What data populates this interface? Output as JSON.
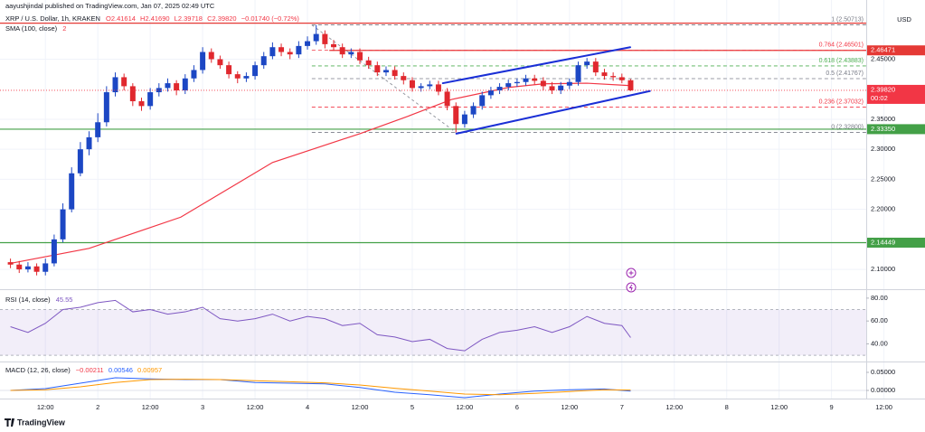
{
  "header": {
    "publisher": "aayushjindal published on TradingView.com, Jan 07, 2025 02:49 UTC",
    "symbol": "XRP / U.S. Dollar, 1h, KRAKEN",
    "ohlc_text": [
      "O2.41614",
      "H2.41690",
      "L2.39718",
      "C2.39820",
      "−0.01740 (−0.72%)"
    ],
    "sma_label": "SMA (100, close)",
    "sma_value": "2"
  },
  "footer": {
    "brand": "TradingView"
  },
  "chart_data": {
    "type": "candlestick",
    "currency": "USD",
    "up_color": "#1c47c4",
    "down_color": "#e0282e",
    "xlim": [
      1.6,
      213.4
    ],
    "xticks": [
      {
        "value": 12,
        "label": "12:00"
      },
      {
        "value": 24,
        "label": "2"
      },
      {
        "value": 36,
        "label": "12:00"
      },
      {
        "value": 48,
        "label": "3"
      },
      {
        "value": 60,
        "label": "12:00"
      },
      {
        "value": 72,
        "label": "4"
      },
      {
        "value": 84,
        "label": "12:00"
      },
      {
        "value": 96,
        "label": "5"
      },
      {
        "value": 108,
        "label": "12:00"
      },
      {
        "value": 120,
        "label": "6"
      },
      {
        "value": 132,
        "label": "12:00"
      },
      {
        "value": 144,
        "label": "7"
      },
      {
        "value": 156,
        "label": "12:00"
      },
      {
        "value": 168,
        "label": "8"
      },
      {
        "value": 180,
        "label": "12:00"
      },
      {
        "value": 192,
        "label": "9"
      },
      {
        "value": 204,
        "label": "12:00"
      }
    ],
    "ylim": [
      2.067,
      2.526
    ],
    "yticks": [
      {
        "value": 2.1,
        "label": "2.10000"
      },
      {
        "value": 2.2,
        "label": "2.20000"
      },
      {
        "value": 2.25,
        "label": "2.25000"
      },
      {
        "value": 2.3,
        "label": "2.30000"
      },
      {
        "value": 2.35,
        "label": "2.35000"
      },
      {
        "value": 2.45,
        "label": "2.45000"
      }
    ],
    "grid": true,
    "x": [
      4,
      6,
      8,
      10,
      12,
      14,
      16,
      18,
      20,
      22,
      24,
      26,
      28,
      30,
      32,
      34,
      36,
      38,
      40,
      42,
      44,
      46,
      48,
      50,
      52,
      54,
      56,
      58,
      60,
      62,
      64,
      66,
      68,
      70,
      72,
      74,
      76,
      78,
      80,
      82,
      84,
      86,
      88,
      90,
      92,
      94,
      96,
      98,
      100,
      102,
      104,
      106,
      108,
      110,
      112,
      114,
      116,
      118,
      120,
      122,
      124,
      126,
      128,
      130,
      132,
      134,
      136,
      138,
      140,
      142,
      144,
      146
    ],
    "ohlc": [
      [
        2.112,
        2.118,
        2.102,
        2.108
      ],
      [
        2.108,
        2.114,
        2.094,
        2.1
      ],
      [
        2.1,
        2.112,
        2.095,
        2.105
      ],
      [
        2.105,
        2.11,
        2.09,
        2.096
      ],
      [
        2.096,
        2.118,
        2.09,
        2.11
      ],
      [
        2.11,
        2.158,
        2.105,
        2.15
      ],
      [
        2.15,
        2.21,
        2.145,
        2.2
      ],
      [
        2.2,
        2.27,
        2.195,
        2.26
      ],
      [
        2.26,
        2.312,
        2.255,
        2.3
      ],
      [
        2.3,
        2.33,
        2.29,
        2.32
      ],
      [
        2.32,
        2.36,
        2.312,
        2.345
      ],
      [
        2.345,
        2.405,
        2.338,
        2.395
      ],
      [
        2.395,
        2.428,
        2.388,
        2.42
      ],
      [
        2.42,
        2.426,
        2.398,
        2.405
      ],
      [
        2.405,
        2.41,
        2.372,
        2.38
      ],
      [
        2.38,
        2.386,
        2.364,
        2.372
      ],
      [
        2.372,
        2.402,
        2.366,
        2.395
      ],
      [
        2.395,
        2.41,
        2.388,
        2.402
      ],
      [
        2.402,
        2.418,
        2.396,
        2.41
      ],
      [
        2.41,
        2.415,
        2.39,
        2.398
      ],
      [
        2.398,
        2.425,
        2.392,
        2.418
      ],
      [
        2.418,
        2.44,
        2.412,
        2.432
      ],
      [
        2.432,
        2.47,
        2.426,
        2.462
      ],
      [
        2.462,
        2.468,
        2.444,
        2.45
      ],
      [
        2.45,
        2.456,
        2.434,
        2.44
      ],
      [
        2.44,
        2.446,
        2.418,
        2.425
      ],
      [
        2.425,
        2.43,
        2.41,
        2.418
      ],
      [
        2.418,
        2.428,
        2.412,
        2.422
      ],
      [
        2.422,
        2.446,
        2.416,
        2.44
      ],
      [
        2.44,
        2.462,
        2.434,
        2.455
      ],
      [
        2.455,
        2.478,
        2.45,
        2.47
      ],
      [
        2.47,
        2.476,
        2.455,
        2.462
      ],
      [
        2.462,
        2.468,
        2.45,
        2.458
      ],
      [
        2.458,
        2.48,
        2.452,
        2.472
      ],
      [
        2.472,
        2.488,
        2.466,
        2.48
      ],
      [
        2.48,
        2.507,
        2.474,
        2.492
      ],
      [
        2.492,
        2.498,
        2.468,
        2.475
      ],
      [
        2.475,
        2.482,
        2.464,
        2.47
      ],
      [
        2.47,
        2.476,
        2.452,
        2.458
      ],
      [
        2.458,
        2.468,
        2.452,
        2.462
      ],
      [
        2.462,
        2.468,
        2.442,
        2.448
      ],
      [
        2.448,
        2.454,
        2.434,
        2.44
      ],
      [
        2.44,
        2.446,
        2.422,
        2.428
      ],
      [
        2.428,
        2.438,
        2.422,
        2.432
      ],
      [
        2.432,
        2.438,
        2.416,
        2.422
      ],
      [
        2.422,
        2.428,
        2.408,
        2.415
      ],
      [
        2.415,
        2.42,
        2.396,
        2.402
      ],
      [
        2.402,
        2.41,
        2.396,
        2.405
      ],
      [
        2.405,
        2.414,
        2.4,
        2.408
      ],
      [
        2.408,
        2.414,
        2.39,
        2.396
      ],
      [
        2.396,
        2.402,
        2.365,
        2.372
      ],
      [
        2.372,
        2.378,
        2.328,
        2.342
      ],
      [
        2.342,
        2.364,
        2.336,
        2.358
      ],
      [
        2.358,
        2.378,
        2.352,
        2.372
      ],
      [
        2.372,
        2.396,
        2.366,
        2.39
      ],
      [
        2.39,
        2.404,
        2.384,
        2.398
      ],
      [
        2.398,
        2.41,
        2.392,
        2.404
      ],
      [
        2.404,
        2.416,
        2.398,
        2.41
      ],
      [
        2.41,
        2.418,
        2.404,
        2.412
      ],
      [
        2.412,
        2.424,
        2.406,
        2.418
      ],
      [
        2.418,
        2.424,
        2.408,
        2.414
      ],
      [
        2.414,
        2.42,
        2.398,
        2.405
      ],
      [
        2.405,
        2.412,
        2.392,
        2.398
      ],
      [
        2.398,
        2.412,
        2.392,
        2.406
      ],
      [
        2.406,
        2.418,
        2.4,
        2.412
      ],
      [
        2.412,
        2.446,
        2.406,
        2.44
      ],
      [
        2.44,
        2.452,
        2.434,
        2.446
      ],
      [
        2.446,
        2.452,
        2.422,
        2.428
      ],
      [
        2.428,
        2.434,
        2.416,
        2.422
      ],
      [
        2.422,
        2.428,
        2.414,
        2.42
      ],
      [
        2.42,
        2.426,
        2.41,
        2.415
      ],
      [
        2.415,
        2.417,
        2.397,
        2.398
      ]
    ],
    "sma": {
      "color": "#f23645",
      "x": [
        4,
        22,
        43,
        64,
        84,
        95,
        105,
        118,
        126,
        136,
        146
      ],
      "values": [
        2.11,
        2.135,
        2.187,
        2.278,
        2.326,
        2.355,
        2.383,
        2.403,
        2.409,
        2.41,
        2.406
      ]
    },
    "levels": [
      {
        "value": 2.51,
        "color": "#e53935",
        "from": 1.6
      },
      {
        "value": 2.46471,
        "label": "2.46471",
        "color": "#e53935",
        "from": 77
      },
      {
        "value": 2.3335,
        "label": "2.33350",
        "color": "#43a047",
        "from": 1.6
      },
      {
        "value": 2.14449,
        "label": "2.14449",
        "color": "#43a047",
        "from": 1.6
      }
    ],
    "last": {
      "value": 2.3982,
      "label": "2.39820",
      "countdown": "00:02",
      "color": "#f23645"
    },
    "fib": {
      "from_x": 73,
      "to_x": 106,
      "levels": [
        {
          "label": "1 (2.50713)",
          "value": 2.50713,
          "color": "#787b86"
        },
        {
          "label": "0.764 (2.46501)",
          "value": 2.46501,
          "color": "#f23645"
        },
        {
          "label": "0.618 (2.43883)",
          "value": 2.43883,
          "color": "#4caf50"
        },
        {
          "label": "0.5 (2.41767)",
          "value": 2.41767,
          "color": "#787b86"
        },
        {
          "label": "0.236 (2.37032)",
          "value": 2.37032,
          "color": "#f23645"
        },
        {
          "label": "0 (2.32800)",
          "value": 2.328,
          "color": "#787b86"
        }
      ]
    },
    "channel": {
      "color": "#1a2fd6",
      "lines": [
        {
          "x": [
            103,
            145.9
          ],
          "values": [
            2.41,
            2.47
          ]
        },
        {
          "x": [
            106.1,
            150.4
          ],
          "values": [
            2.326,
            2.397
          ]
        }
      ]
    },
    "rsi": {
      "title": "RSI (14, close)",
      "value_label": "45.55",
      "color": "#7e57c2",
      "ylim": [
        26.2,
        86.2
      ],
      "yticks": [
        {
          "value": 80,
          "label": "80.00"
        },
        {
          "value": 60,
          "label": "60.00"
        },
        {
          "value": 40,
          "label": "40.00"
        }
      ],
      "bands": [
        30,
        70
      ],
      "x": [
        4,
        8,
        12,
        16,
        20,
        24,
        28,
        32,
        36,
        40,
        44,
        48,
        52,
        56,
        60,
        64,
        68,
        72,
        76,
        80,
        84,
        88,
        92,
        96,
        100,
        104,
        108,
        112,
        116,
        120,
        124,
        128,
        132,
        136,
        140,
        144,
        146
      ],
      "values": [
        55,
        50,
        58,
        70,
        72,
        76,
        78,
        68,
        70,
        66,
        68,
        72,
        62,
        60,
        62,
        66,
        60,
        64,
        62,
        56,
        58,
        48,
        46,
        42,
        44,
        36,
        34,
        44,
        50,
        52,
        55,
        50,
        55,
        64,
        58,
        56,
        45.55
      ]
    },
    "macd": {
      "title": "MACD (12, 26, close)",
      "value_labels": [
        "−0.00211",
        "0.00546",
        "0.00957"
      ],
      "ylim": [
        -0.02,
        0.075
      ],
      "yticks": [
        {
          "value": 0.05,
          "label": "0.05000"
        },
        {
          "value": 0,
          "label": "0.00000"
        }
      ],
      "x": [
        4,
        12,
        20,
        28,
        36,
        44,
        52,
        60,
        68,
        76,
        84,
        92,
        100,
        108,
        116,
        124,
        132,
        140,
        146
      ],
      "series": [
        {
          "color": "#2962ff",
          "values": [
            0.0,
            0.005,
            0.02,
            0.035,
            0.032,
            0.03,
            0.03,
            0.022,
            0.02,
            0.018,
            0.008,
            -0.005,
            -0.012,
            -0.02,
            -0.01,
            -0.002,
            0.002,
            0.004,
            -0.002
          ]
        },
        {
          "color": "#ff9800",
          "values": [
            0.0,
            0.002,
            0.01,
            0.022,
            0.03,
            0.031,
            0.03,
            0.027,
            0.024,
            0.021,
            0.015,
            0.006,
            -0.002,
            -0.01,
            -0.012,
            -0.008,
            -0.003,
            0.002,
            0.001
          ]
        }
      ]
    }
  }
}
